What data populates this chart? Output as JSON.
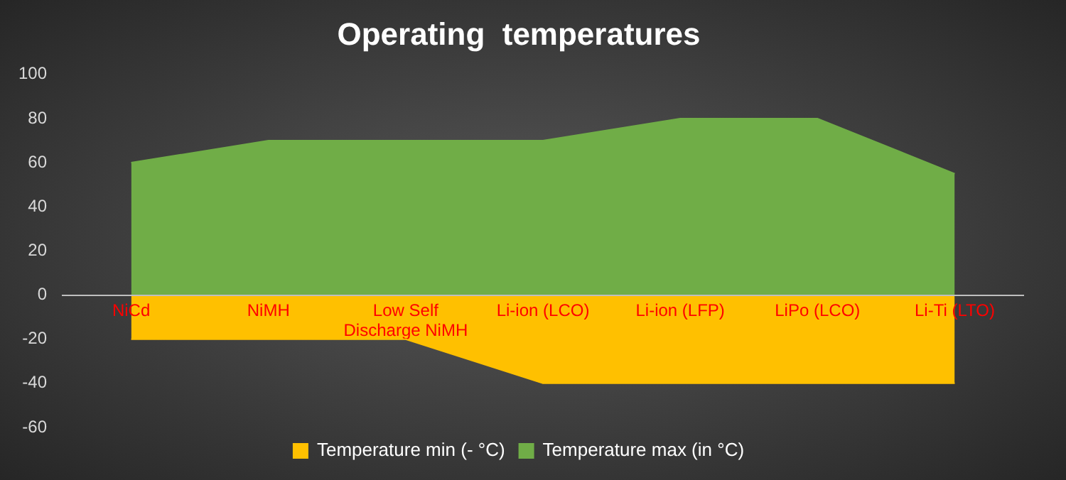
{
  "chart_data": {
    "type": "area",
    "title": "Operating  temperatures",
    "categories": [
      "NiCd",
      "NiMH",
      "Low Self Discharge NiMH",
      "Li-ion (LCO)",
      "Li-ion (LFP)",
      "LiPo (LCO)",
      "Li-Ti (LTO)"
    ],
    "series": [
      {
        "name": "Temperature min (- °C)",
        "color": "#ffc000",
        "values": [
          -20,
          -20,
          -20,
          -40,
          -40,
          -40,
          -40
        ]
      },
      {
        "name": "Temperature max (in °C)",
        "color": "#70ad47",
        "values": [
          60,
          70,
          70,
          70,
          80,
          80,
          55
        ]
      }
    ],
    "ylim": [
      -60,
      100
    ],
    "yticks": [
      -60,
      -40,
      -20,
      0,
      20,
      40,
      60,
      80,
      100
    ],
    "grid": false,
    "legend": "bottom"
  }
}
